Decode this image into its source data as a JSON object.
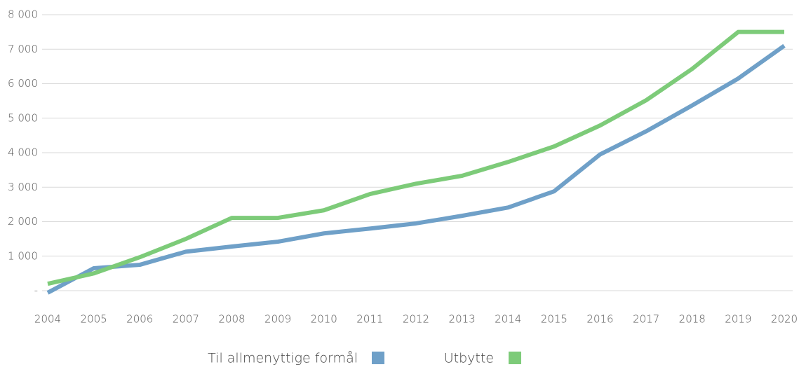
{
  "chart_data": {
    "type": "line",
    "categories": [
      "2004",
      "2005",
      "2006",
      "2007",
      "2008",
      "2009",
      "2010",
      "2011",
      "2012",
      "2013",
      "2014",
      "2015",
      "2016",
      "2017",
      "2018",
      "2019",
      "2020"
    ],
    "series": [
      {
        "name": "Til allmenyttige formål",
        "color": "#6fa0c8",
        "values": [
          -60,
          650,
          750,
          1130,
          1280,
          1420,
          1660,
          1800,
          1950,
          2170,
          2410,
          2880,
          3950,
          4620,
          5370,
          6150,
          7100
        ]
      },
      {
        "name": "Utbytte",
        "color": "#7dcb79",
        "values": [
          200,
          500,
          970,
          1500,
          2110,
          2110,
          2330,
          2800,
          3100,
          3330,
          3730,
          4180,
          4790,
          5520,
          6430,
          7500,
          7500
        ]
      }
    ],
    "ylim": [
      -200,
      8000
    ],
    "yticks": [
      {
        "value": 0,
        "label": "-"
      },
      {
        "value": 1000,
        "label": "1 000"
      },
      {
        "value": 2000,
        "label": "2 000"
      },
      {
        "value": 3000,
        "label": "3 000"
      },
      {
        "value": 4000,
        "label": "4 000"
      },
      {
        "value": 5000,
        "label": "5 000"
      },
      {
        "value": 6000,
        "label": "6 000"
      },
      {
        "value": 7000,
        "label": "7 000"
      },
      {
        "value": 8000,
        "label": "8 000"
      }
    ],
    "grid": true,
    "legend": "bottom"
  }
}
